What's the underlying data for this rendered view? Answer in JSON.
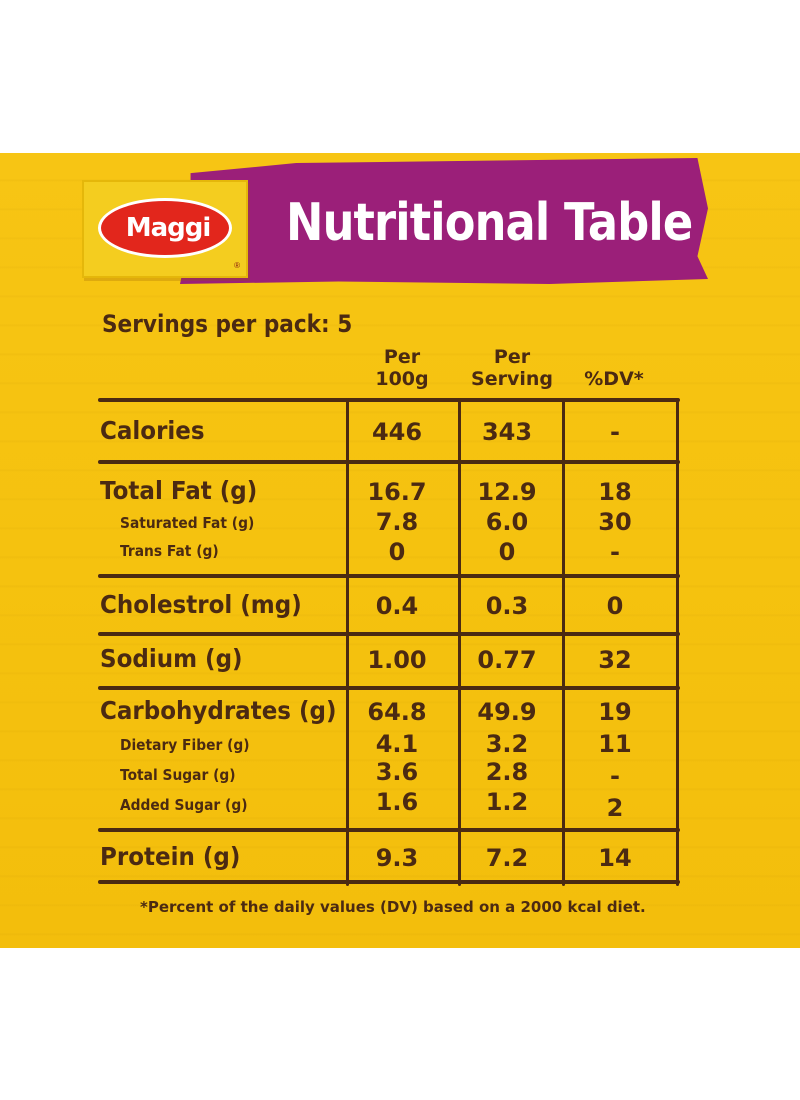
{
  "brand": {
    "logo_text": "Maggi"
  },
  "title": "Nutritional Table",
  "servings": "Servings per pack: 5",
  "columns": {
    "per100_line1": "Per",
    "per100_line2": "100g",
    "perServing_line1": "Per",
    "perServing_line2": "Serving",
    "dv": "%DV*"
  },
  "rows": {
    "calories": {
      "label": "Calories",
      "per100": "446",
      "serving": "343",
      "dv": "-"
    },
    "total_fat": {
      "label": "Total Fat (g)",
      "per100": "16.7",
      "serving": "12.9",
      "dv": "18"
    },
    "sat_fat": {
      "label": "Saturated Fat (g)",
      "per100": "7.8",
      "serving": "6.0",
      "dv": "30"
    },
    "trans_fat": {
      "label": "Trans Fat (g)",
      "per100": "0",
      "serving": "0",
      "dv": "-"
    },
    "cholestrol": {
      "label": "Cholestrol (mg)",
      "per100": "0.4",
      "serving": "0.3",
      "dv": "0"
    },
    "sodium": {
      "label": "Sodium (g)",
      "per100": "1.00",
      "serving": "0.77",
      "dv": "32"
    },
    "carbs": {
      "label": "Carbohydrates (g)",
      "per100": "64.8",
      "serving": "49.9",
      "dv": "19"
    },
    "fiber": {
      "label": "Dietary Fiber (g)",
      "per100": "4.1",
      "serving": "3.2",
      "dv": "11"
    },
    "total_sugar": {
      "label": "Total Sugar (g)",
      "per100": "3.6",
      "serving": "2.8",
      "dv": "-"
    },
    "added_sugar": {
      "label": "Added Sugar (g)",
      "per100": "1.6",
      "serving": "1.2",
      "dv": "2"
    },
    "protein": {
      "label": "Protein (g)",
      "per100": "9.3",
      "serving": "7.2",
      "dv": "14"
    }
  },
  "footnote": "*Percent of the daily values (DV) based on a 2000 kcal diet.",
  "colors": {
    "background": "#f5c20f",
    "banner": "#9b1f79",
    "ink": "#4b2a12",
    "logo_red": "#e2261c"
  }
}
